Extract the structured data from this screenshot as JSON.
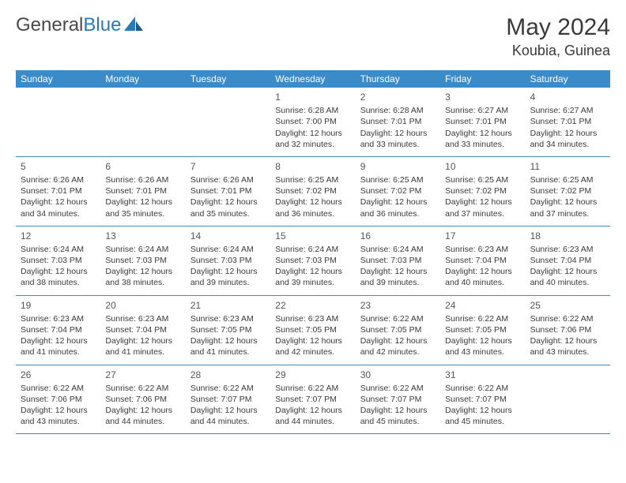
{
  "brand": {
    "part1": "General",
    "part2": "Blue"
  },
  "title": "May 2024",
  "location": "Koubia, Guinea",
  "colors": {
    "header_bg": "#3b8bc8",
    "header_text": "#ffffff",
    "brand_blue": "#2a7ab8",
    "text": "#3a3a3a",
    "border": "#3b8bc8"
  },
  "weekdays": [
    "Sunday",
    "Monday",
    "Tuesday",
    "Wednesday",
    "Thursday",
    "Friday",
    "Saturday"
  ],
  "weeks": [
    [
      null,
      null,
      null,
      {
        "n": "1",
        "sr": "6:28 AM",
        "ss": "7:00 PM",
        "dl": "12 hours and 32 minutes."
      },
      {
        "n": "2",
        "sr": "6:28 AM",
        "ss": "7:01 PM",
        "dl": "12 hours and 33 minutes."
      },
      {
        "n": "3",
        "sr": "6:27 AM",
        "ss": "7:01 PM",
        "dl": "12 hours and 33 minutes."
      },
      {
        "n": "4",
        "sr": "6:27 AM",
        "ss": "7:01 PM",
        "dl": "12 hours and 34 minutes."
      }
    ],
    [
      {
        "n": "5",
        "sr": "6:26 AM",
        "ss": "7:01 PM",
        "dl": "12 hours and 34 minutes."
      },
      {
        "n": "6",
        "sr": "6:26 AM",
        "ss": "7:01 PM",
        "dl": "12 hours and 35 minutes."
      },
      {
        "n": "7",
        "sr": "6:26 AM",
        "ss": "7:01 PM",
        "dl": "12 hours and 35 minutes."
      },
      {
        "n": "8",
        "sr": "6:25 AM",
        "ss": "7:02 PM",
        "dl": "12 hours and 36 minutes."
      },
      {
        "n": "9",
        "sr": "6:25 AM",
        "ss": "7:02 PM",
        "dl": "12 hours and 36 minutes."
      },
      {
        "n": "10",
        "sr": "6:25 AM",
        "ss": "7:02 PM",
        "dl": "12 hours and 37 minutes."
      },
      {
        "n": "11",
        "sr": "6:25 AM",
        "ss": "7:02 PM",
        "dl": "12 hours and 37 minutes."
      }
    ],
    [
      {
        "n": "12",
        "sr": "6:24 AM",
        "ss": "7:03 PM",
        "dl": "12 hours and 38 minutes."
      },
      {
        "n": "13",
        "sr": "6:24 AM",
        "ss": "7:03 PM",
        "dl": "12 hours and 38 minutes."
      },
      {
        "n": "14",
        "sr": "6:24 AM",
        "ss": "7:03 PM",
        "dl": "12 hours and 39 minutes."
      },
      {
        "n": "15",
        "sr": "6:24 AM",
        "ss": "7:03 PM",
        "dl": "12 hours and 39 minutes."
      },
      {
        "n": "16",
        "sr": "6:24 AM",
        "ss": "7:03 PM",
        "dl": "12 hours and 39 minutes."
      },
      {
        "n": "17",
        "sr": "6:23 AM",
        "ss": "7:04 PM",
        "dl": "12 hours and 40 minutes."
      },
      {
        "n": "18",
        "sr": "6:23 AM",
        "ss": "7:04 PM",
        "dl": "12 hours and 40 minutes."
      }
    ],
    [
      {
        "n": "19",
        "sr": "6:23 AM",
        "ss": "7:04 PM",
        "dl": "12 hours and 41 minutes."
      },
      {
        "n": "20",
        "sr": "6:23 AM",
        "ss": "7:04 PM",
        "dl": "12 hours and 41 minutes."
      },
      {
        "n": "21",
        "sr": "6:23 AM",
        "ss": "7:05 PM",
        "dl": "12 hours and 41 minutes."
      },
      {
        "n": "22",
        "sr": "6:23 AM",
        "ss": "7:05 PM",
        "dl": "12 hours and 42 minutes."
      },
      {
        "n": "23",
        "sr": "6:22 AM",
        "ss": "7:05 PM",
        "dl": "12 hours and 42 minutes."
      },
      {
        "n": "24",
        "sr": "6:22 AM",
        "ss": "7:05 PM",
        "dl": "12 hours and 43 minutes."
      },
      {
        "n": "25",
        "sr": "6:22 AM",
        "ss": "7:06 PM",
        "dl": "12 hours and 43 minutes."
      }
    ],
    [
      {
        "n": "26",
        "sr": "6:22 AM",
        "ss": "7:06 PM",
        "dl": "12 hours and 43 minutes."
      },
      {
        "n": "27",
        "sr": "6:22 AM",
        "ss": "7:06 PM",
        "dl": "12 hours and 44 minutes."
      },
      {
        "n": "28",
        "sr": "6:22 AM",
        "ss": "7:07 PM",
        "dl": "12 hours and 44 minutes."
      },
      {
        "n": "29",
        "sr": "6:22 AM",
        "ss": "7:07 PM",
        "dl": "12 hours and 44 minutes."
      },
      {
        "n": "30",
        "sr": "6:22 AM",
        "ss": "7:07 PM",
        "dl": "12 hours and 45 minutes."
      },
      {
        "n": "31",
        "sr": "6:22 AM",
        "ss": "7:07 PM",
        "dl": "12 hours and 45 minutes."
      },
      null
    ]
  ],
  "labels": {
    "sunrise": "Sunrise:",
    "sunset": "Sunset:",
    "daylight": "Daylight:"
  }
}
